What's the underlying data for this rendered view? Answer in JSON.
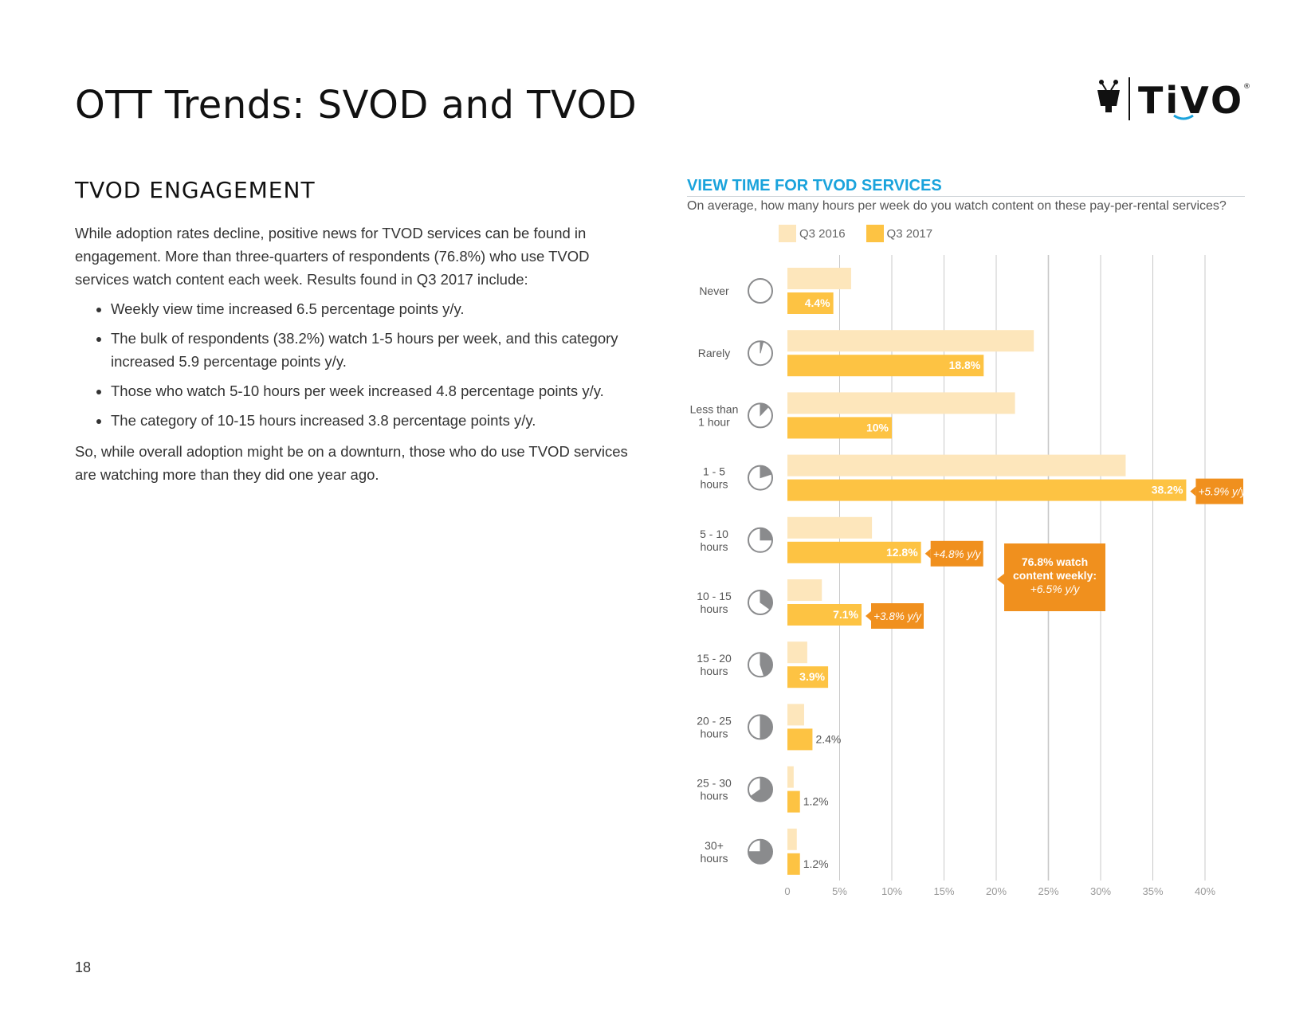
{
  "page": {
    "title": "OTT Trends: SVOD and TVOD",
    "section_heading": "TVOD ENGAGEMENT",
    "intro": "While adoption rates decline, positive news for TVOD services can be found in engagement. More than three-quarters of respondents (76.8%) who use TVOD services watch content each week. Results found in Q3 2017 include:",
    "bullets": [
      "Weekly view time increased 6.5 percentage points y/y.",
      "The bulk of respondents (38.2%) watch 1-5 hours per week, and this category increased 5.9 percentage points y/y.",
      "Those who watch 5-10 hours per week increased 4.8 percentage points y/y.",
      "The category of 10-15 hours increased 3.8 percentage points y/y."
    ],
    "conclusion": "So, while overall adoption might be on a downturn, those who do use TVOD services are watching more than they did one year ago.",
    "page_number": "18"
  },
  "logo": {
    "text": "TiVO",
    "mark": "®"
  },
  "colors": {
    "q3_2016": "#fde6bb",
    "q3_2017": "#fdc343",
    "callout": "#f0901e",
    "title_blue": "#1aa3dc",
    "icon_gray": "#8a8b8d",
    "grid": "#c9c9c9"
  },
  "chart_data": {
    "type": "bar",
    "orientation": "horizontal",
    "title": "VIEW TIME FOR TVOD SERVICES",
    "subtitle": "On average, how many hours per week do you watch content on these pay-per-rental services?",
    "legend": [
      "Q3 2016",
      "Q3 2017"
    ],
    "categories": [
      [
        "Never"
      ],
      [
        "Rarely"
      ],
      [
        "Less than",
        "1 hour"
      ],
      [
        "1 - 5",
        "hours"
      ],
      [
        "5 - 10",
        "hours"
      ],
      [
        "10 - 15",
        "hours"
      ],
      [
        "15 - 20",
        "hours"
      ],
      [
        "20 - 25",
        "hours"
      ],
      [
        "25 - 30",
        "hours"
      ],
      [
        "30+",
        "hours"
      ]
    ],
    "clock_fractions": [
      0,
      0.04,
      0.12,
      0.2,
      0.25,
      0.35,
      0.45,
      0.5,
      0.65,
      0.75
    ],
    "series": [
      {
        "name": "Q3 2016",
        "values": [
          6.1,
          23.6,
          21.8,
          32.4,
          8.1,
          3.3,
          1.9,
          1.6,
          0.6,
          0.9
        ]
      },
      {
        "name": "Q3 2017",
        "values": [
          4.4,
          18.8,
          10,
          38.2,
          12.8,
          7.1,
          3.9,
          2.4,
          1.2,
          1.2
        ]
      }
    ],
    "data_labels": [
      "4.4%",
      "18.8%",
      "10%",
      "38.2%",
      "12.8%",
      "7.1%",
      "3.9%",
      "2.4%",
      "1.2%",
      "1.2%"
    ],
    "changes": [
      {
        "index": 3,
        "label": "+5.9% y/y"
      },
      {
        "index": 4,
        "label": "+4.8% y/y"
      },
      {
        "index": 5,
        "label": "+3.8% y/y"
      }
    ],
    "callout": {
      "line1": "76.8% watch",
      "line2": "content weekly:",
      "line3": "+6.5% y/y"
    },
    "x_ticks": [
      0,
      5,
      10,
      15,
      20,
      25,
      30,
      35,
      40
    ],
    "x_tick_labels": [
      "0",
      "5%",
      "10%",
      "15%",
      "20%",
      "25%",
      "30%",
      "35%",
      "40%"
    ],
    "xlim": [
      0,
      40
    ]
  }
}
